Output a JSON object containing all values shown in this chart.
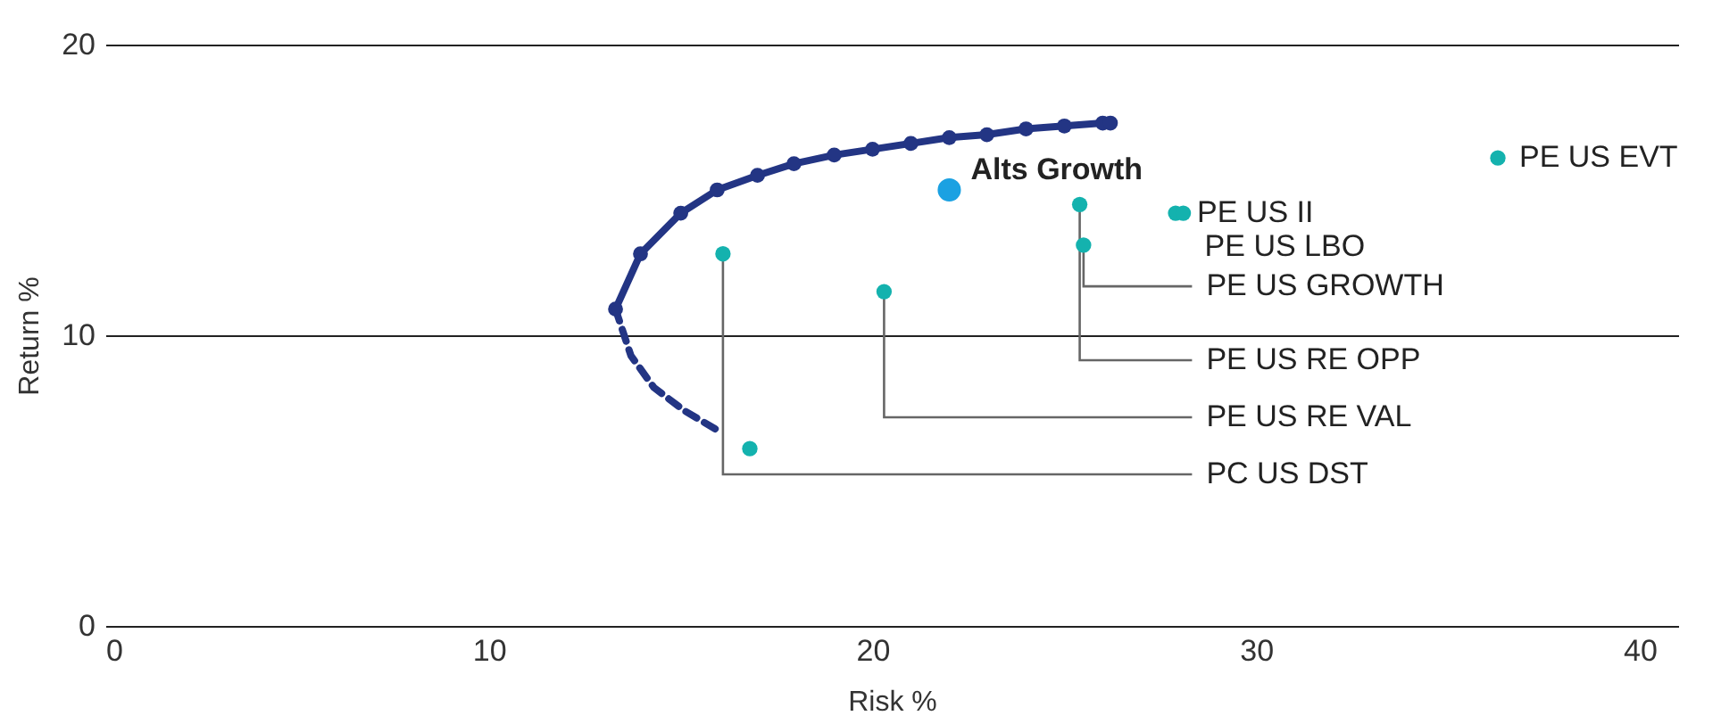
{
  "chart_data": {
    "type": "scatter",
    "xlabel": "Risk %",
    "ylabel": "Return %",
    "xlim": [
      0,
      41
    ],
    "ylim": [
      0,
      20
    ],
    "xticks": [
      0,
      10,
      20,
      30,
      40
    ],
    "yticks": [
      0,
      10,
      20
    ],
    "grid": "y",
    "series": [
      {
        "type": "line",
        "color": "#233584",
        "marker": "circle",
        "line_style": "solid",
        "x": [
          13.3,
          13.95,
          15.0,
          15.95,
          17.0,
          17.95,
          19.0,
          20.0,
          21.0,
          22.0,
          22.98,
          24.0,
          25.0,
          26.0,
          26.2
        ],
        "values": [
          10.9,
          12.8,
          14.2,
          15.0,
          15.5,
          15.9,
          16.2,
          16.4,
          16.6,
          16.8,
          16.9,
          17.1,
          17.2,
          17.3,
          17.3
        ]
      },
      {
        "type": "line",
        "color": "#233584",
        "marker": "none",
        "line_style": "dashed",
        "x": [
          13.3,
          13.7,
          14.3,
          15.1,
          16.0
        ],
        "values": [
          10.9,
          9.3,
          8.2,
          7.4,
          6.7
        ]
      },
      {
        "type": "scatter",
        "name": "Alts Growth",
        "color": "#1ba1e2",
        "x": [
          22.0
        ],
        "values": [
          15.0
        ]
      },
      {
        "type": "scatter",
        "color": "#14b2ae",
        "x": [
          36.3,
          27.9,
          28.1,
          25.4,
          25.5,
          20.3,
          16.1,
          16.8
        ],
        "values": [
          16.1,
          14.2,
          14.2,
          14.5,
          13.1,
          11.5,
          12.8,
          6.1
        ]
      }
    ],
    "annotations": [
      {
        "text": "PE US EVT",
        "x": 36.3,
        "y": 16.1
      },
      {
        "text": "PE US II",
        "x": 27.9,
        "y": 14.2
      },
      {
        "text": "PE US LBO",
        "x": 28.1,
        "y": 14.2
      },
      {
        "text": "PE US RE OPP",
        "x": 25.4,
        "y": 14.5
      },
      {
        "text": "PE US GROWTH",
        "x": 25.5,
        "y": 13.1
      },
      {
        "text": "PE US RE VAL",
        "x": 20.3,
        "y": 11.5
      },
      {
        "text": "PC US DST",
        "x": 16.1,
        "y": 12.8
      }
    ]
  }
}
